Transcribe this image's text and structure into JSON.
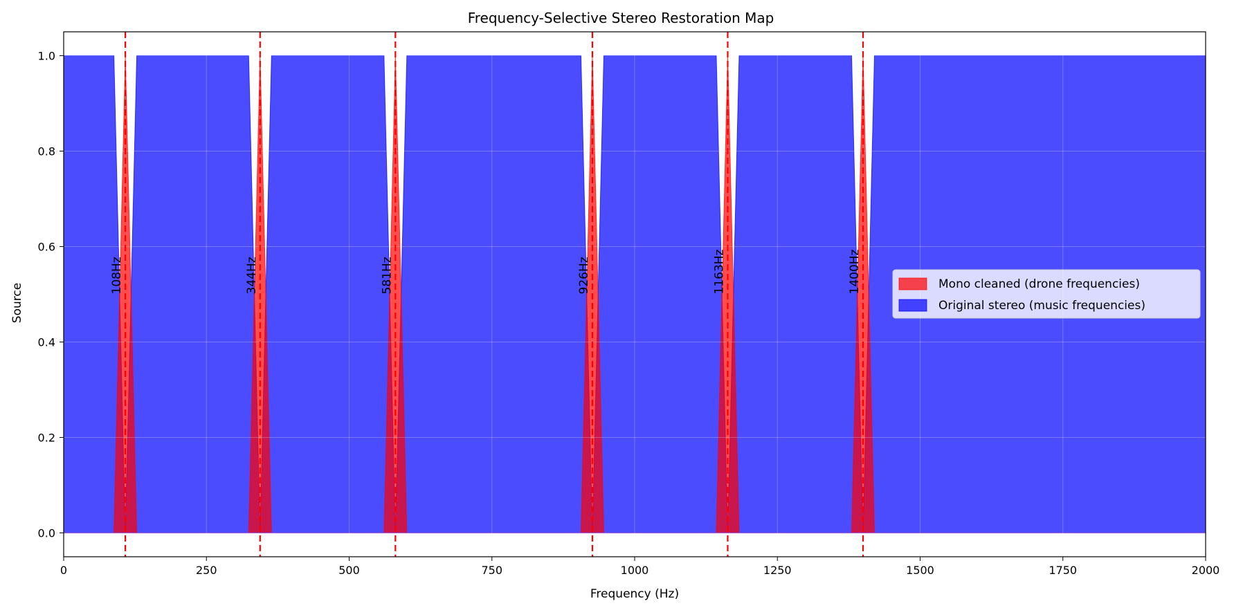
{
  "chart_data": {
    "type": "area",
    "title": "Frequency-Selective Stereo Restoration Map",
    "xlabel": "Frequency (Hz)",
    "ylabel": "Source",
    "xlim": [
      0,
      2000
    ],
    "ylim": [
      -0.05,
      1.05
    ],
    "x_ticks": [
      0,
      250,
      500,
      750,
      1000,
      1250,
      1500,
      1750,
      2000
    ],
    "y_ticks": [
      "0.0",
      "0.2",
      "0.4",
      "0.6",
      "0.8",
      "1.0"
    ],
    "grid": true,
    "legend_position": "center-right",
    "drone_frequencies": [
      108,
      344,
      581,
      926,
      1163,
      1400
    ],
    "drone_labels": [
      "108Hz",
      "344Hz",
      "581Hz",
      "926Hz",
      "1163Hz",
      "1400Hz"
    ],
    "series": [
      {
        "name": "Mono cleaned (drone frequencies)",
        "color": "#ff0000",
        "x": [
          0,
          88,
          108,
          128,
          2000
        ],
        "values": [
          0,
          0,
          1,
          0,
          0
        ],
        "note_points": {
          "peaks_at": [
            108,
            344,
            581,
            926,
            1163,
            1400
          ],
          "half_width_hz": 20
        }
      },
      {
        "name": "Original stereo (music frequencies)",
        "color": "#0000ff",
        "x": [
          0,
          88,
          108,
          128,
          2000
        ],
        "values": [
          1,
          1,
          0,
          1,
          1
        ],
        "note_points": {
          "notches_at": [
            108,
            344,
            581,
            926,
            1163,
            1400
          ],
          "half_width_hz": 20
        }
      }
    ],
    "marker_line_color": "#ff0000"
  }
}
